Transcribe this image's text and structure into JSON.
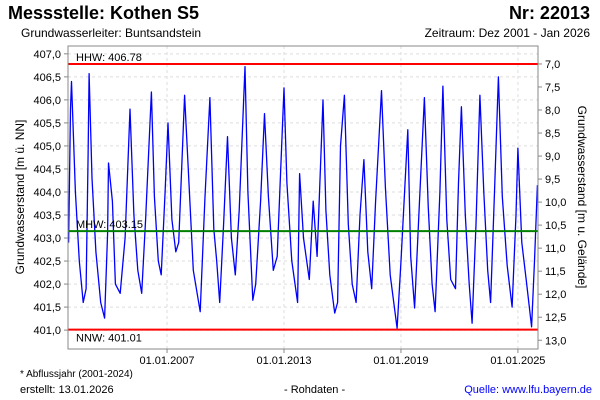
{
  "header": {
    "title": "Messstelle: Kothen S5",
    "number": "Nr: 22013",
    "aquifer": "Grundwasserleiter: Buntsandstein",
    "period": "Zeitraum: Dez 2001 - Jan 2026"
  },
  "footer": {
    "note": "* Abflussjahr (2001-2024)",
    "created": "erstellt:  13.01.2026",
    "raw": "- Rohdaten -",
    "source": "Quelle: www.lfu.bayern.de"
  },
  "chart_data": {
    "type": "line",
    "ylabel": "Grundwasserstand [m ü. NN]",
    "ylabel_right": "Grundwasserstand [m u. Gelände]",
    "ylim": [
      400.59,
      407.17
    ],
    "xlim": [
      2001.92,
      2026.03
    ],
    "terrain_level": 413.78,
    "yticks": [
      "407,0",
      "406,5",
      "406,0",
      "405,5",
      "405,0",
      "404,5",
      "404,0",
      "403,5",
      "403,0",
      "402,5",
      "402,0",
      "401,5",
      "401,0"
    ],
    "yticks_right": [
      "7,0",
      "7,5",
      "8,0",
      "8,5",
      "9,0",
      "9,5",
      "10,0",
      "10,5",
      "11,0",
      "11,5",
      "12,0",
      "12,5",
      "13,0"
    ],
    "xticks": [
      {
        "label": "01.01.2007",
        "year": 2007
      },
      {
        "label": "01.01.2013",
        "year": 2013
      },
      {
        "label": "01.01.2019",
        "year": 2019
      },
      {
        "label": "01.01.2025",
        "year": 2025
      }
    ],
    "grid": true,
    "reference_lines": [
      {
        "label": "HHW: 406.78",
        "value": 406.78,
        "color": "#ff0000",
        "label_pos": "above"
      },
      {
        "label": "MHW: 403.15",
        "value": 403.15,
        "color": "#008000",
        "label_pos": "above"
      },
      {
        "label": "NNW: 401.01",
        "value": 401.01,
        "color": "#ff0000",
        "label_pos": "below"
      }
    ],
    "series": [
      {
        "name": "Grundwasserstand",
        "color": "#0000ff",
        "points": [
          [
            2001.95,
            402.9
          ],
          [
            2002.05,
            405.8
          ],
          [
            2002.1,
            406.4
          ],
          [
            2002.3,
            404.0
          ],
          [
            2002.5,
            402.5
          ],
          [
            2002.7,
            401.6
          ],
          [
            2002.85,
            401.9
          ],
          [
            2002.95,
            404.8
          ],
          [
            2003.0,
            406.57
          ],
          [
            2003.15,
            404.3
          ],
          [
            2003.35,
            402.7
          ],
          [
            2003.6,
            401.6
          ],
          [
            2003.8,
            401.26
          ],
          [
            2003.95,
            403.1
          ],
          [
            2004.0,
            404.63
          ],
          [
            2004.2,
            403.8
          ],
          [
            2004.35,
            402.0
          ],
          [
            2004.6,
            401.8
          ],
          [
            2004.85,
            403.0
          ],
          [
            2005.1,
            405.8
          ],
          [
            2005.3,
            403.5
          ],
          [
            2005.5,
            402.3
          ],
          [
            2005.7,
            401.8
          ],
          [
            2005.9,
            403.4
          ],
          [
            2006.2,
            406.17
          ],
          [
            2006.35,
            403.9
          ],
          [
            2006.55,
            402.5
          ],
          [
            2006.7,
            402.2
          ],
          [
            2006.9,
            404.0
          ],
          [
            2007.05,
            405.5
          ],
          [
            2007.25,
            403.4
          ],
          [
            2007.45,
            402.7
          ],
          [
            2007.6,
            402.9
          ],
          [
            2007.9,
            406.1
          ],
          [
            2008.1,
            404.4
          ],
          [
            2008.35,
            402.3
          ],
          [
            2008.7,
            401.4
          ],
          [
            2008.95,
            403.9
          ],
          [
            2009.2,
            406.05
          ],
          [
            2009.4,
            403.2
          ],
          [
            2009.55,
            402.5
          ],
          [
            2009.7,
            401.6
          ],
          [
            2009.9,
            403.3
          ],
          [
            2010.1,
            405.2
          ],
          [
            2010.3,
            403.0
          ],
          [
            2010.5,
            402.2
          ],
          [
            2010.7,
            403.6
          ],
          [
            2011.0,
            406.72
          ],
          [
            2011.15,
            404.0
          ],
          [
            2011.4,
            401.65
          ],
          [
            2011.55,
            402.0
          ],
          [
            2011.8,
            403.8
          ],
          [
            2012.0,
            405.7
          ],
          [
            2012.2,
            403.9
          ],
          [
            2012.45,
            402.3
          ],
          [
            2012.65,
            402.6
          ],
          [
            2013.0,
            406.26
          ],
          [
            2013.15,
            404.2
          ],
          [
            2013.4,
            402.5
          ],
          [
            2013.7,
            401.6
          ],
          [
            2013.8,
            404.4
          ],
          [
            2014.0,
            403.0
          ],
          [
            2014.3,
            402.1
          ],
          [
            2014.5,
            403.8
          ],
          [
            2014.7,
            402.6
          ],
          [
            2015.0,
            406.0
          ],
          [
            2015.15,
            403.6
          ],
          [
            2015.35,
            402.2
          ],
          [
            2015.6,
            401.37
          ],
          [
            2015.75,
            401.6
          ],
          [
            2015.9,
            405.0
          ],
          [
            2016.1,
            406.1
          ],
          [
            2016.3,
            403.3
          ],
          [
            2016.5,
            402.0
          ],
          [
            2016.7,
            401.6
          ],
          [
            2016.9,
            403.5
          ],
          [
            2017.1,
            404.7
          ],
          [
            2017.3,
            402.7
          ],
          [
            2017.5,
            401.9
          ],
          [
            2017.7,
            403.8
          ],
          [
            2018.0,
            406.2
          ],
          [
            2018.2,
            404.1
          ],
          [
            2018.45,
            402.2
          ],
          [
            2018.8,
            401.04
          ],
          [
            2019.0,
            402.5
          ],
          [
            2019.35,
            405.35
          ],
          [
            2019.5,
            402.6
          ],
          [
            2019.7,
            401.48
          ],
          [
            2019.95,
            403.8
          ],
          [
            2020.2,
            406.05
          ],
          [
            2020.4,
            403.7
          ],
          [
            2020.6,
            402.0
          ],
          [
            2020.75,
            401.4
          ],
          [
            2021.0,
            404.0
          ],
          [
            2021.15,
            406.3
          ],
          [
            2021.35,
            403.4
          ],
          [
            2021.55,
            402.1
          ],
          [
            2021.8,
            401.9
          ],
          [
            2021.95,
            404.2
          ],
          [
            2022.1,
            405.85
          ],
          [
            2022.3,
            403.5
          ],
          [
            2022.5,
            402.0
          ],
          [
            2022.65,
            401.15
          ],
          [
            2022.85,
            403.3
          ],
          [
            2023.05,
            406.1
          ],
          [
            2023.25,
            404.0
          ],
          [
            2023.45,
            402.3
          ],
          [
            2023.6,
            401.6
          ],
          [
            2023.8,
            404.0
          ],
          [
            2024.0,
            406.5
          ],
          [
            2024.2,
            403.9
          ],
          [
            2024.45,
            402.4
          ],
          [
            2024.7,
            401.5
          ],
          [
            2024.9,
            403.5
          ],
          [
            2025.0,
            404.95
          ],
          [
            2025.2,
            402.9
          ],
          [
            2025.45,
            402.0
          ],
          [
            2025.7,
            401.07
          ],
          [
            2025.85,
            402.5
          ],
          [
            2026.0,
            404.15
          ]
        ]
      }
    ]
  }
}
